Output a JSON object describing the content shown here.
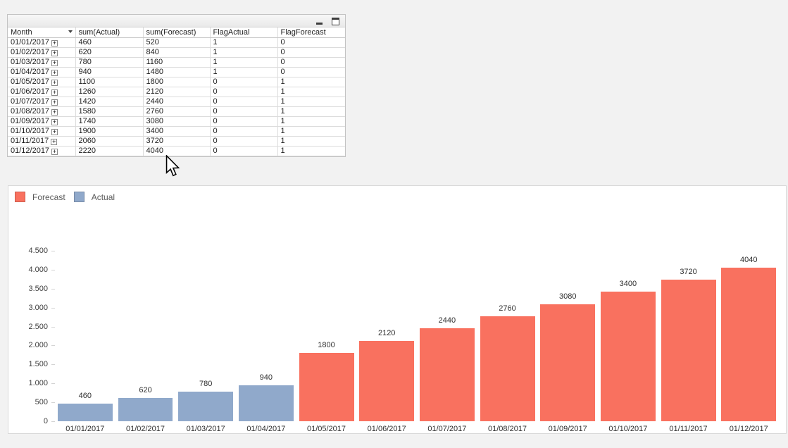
{
  "table_window": {
    "controls": [
      {
        "name": "minimize-button",
        "icon": "minimize-icon"
      },
      {
        "name": "maximize-button",
        "icon": "maximize-icon"
      }
    ]
  },
  "table": {
    "columns": [
      "Month",
      "sum(Actual)",
      "sum(Forecast)",
      "FlagActual",
      "FlagForecast"
    ],
    "expand_icon": "+",
    "rows": [
      {
        "month": "01/01/2017",
        "actual": "460",
        "forecast": "520",
        "flag_actual": "1",
        "flag_forecast": "0"
      },
      {
        "month": "01/02/2017",
        "actual": "620",
        "forecast": "840",
        "flag_actual": "1",
        "flag_forecast": "0"
      },
      {
        "month": "01/03/2017",
        "actual": "780",
        "forecast": "1160",
        "flag_actual": "1",
        "flag_forecast": "0"
      },
      {
        "month": "01/04/2017",
        "actual": "940",
        "forecast": "1480",
        "flag_actual": "1",
        "flag_forecast": "0"
      },
      {
        "month": "01/05/2017",
        "actual": "1100",
        "forecast": "1800",
        "flag_actual": "0",
        "flag_forecast": "1"
      },
      {
        "month": "01/06/2017",
        "actual": "1260",
        "forecast": "2120",
        "flag_actual": "0",
        "flag_forecast": "1"
      },
      {
        "month": "01/07/2017",
        "actual": "1420",
        "forecast": "2440",
        "flag_actual": "0",
        "flag_forecast": "1"
      },
      {
        "month": "01/08/2017",
        "actual": "1580",
        "forecast": "2760",
        "flag_actual": "0",
        "flag_forecast": "1"
      },
      {
        "month": "01/09/2017",
        "actual": "1740",
        "forecast": "3080",
        "flag_actual": "0",
        "flag_forecast": "1"
      },
      {
        "month": "01/10/2017",
        "actual": "1900",
        "forecast": "3400",
        "flag_actual": "0",
        "flag_forecast": "1"
      },
      {
        "month": "01/11/2017",
        "actual": "2060",
        "forecast": "3720",
        "flag_actual": "0",
        "flag_forecast": "1"
      },
      {
        "month": "01/12/2017",
        "actual": "2220",
        "forecast": "4040",
        "flag_actual": "0",
        "flag_forecast": "1"
      }
    ]
  },
  "chart_data": {
    "type": "bar",
    "title": "",
    "xlabel": "",
    "ylabel": "",
    "categories": [
      "01/01/2017",
      "01/02/2017",
      "01/03/2017",
      "01/04/2017",
      "01/05/2017",
      "01/06/2017",
      "01/07/2017",
      "01/08/2017",
      "01/09/2017",
      "01/10/2017",
      "01/11/2017",
      "01/12/2017"
    ],
    "series": [
      {
        "name": "Forecast",
        "color": "#f9715f",
        "values": [
          null,
          null,
          null,
          null,
          1800,
          2120,
          2440,
          2760,
          3080,
          3400,
          3720,
          4040
        ]
      },
      {
        "name": "Actual",
        "color": "#90a9cb",
        "values": [
          460,
          620,
          780,
          940,
          null,
          null,
          null,
          null,
          null,
          null,
          null,
          null
        ]
      }
    ],
    "bar_labels": [
      "460",
      "620",
      "780",
      "940",
      "1800",
      "2120",
      "2440",
      "2760",
      "3080",
      "3400",
      "3720",
      "4040"
    ],
    "ylim": [
      0,
      4500
    ],
    "ytick_values": [
      0,
      500,
      1000,
      1500,
      2000,
      2500,
      3000,
      3500,
      4000,
      4500
    ],
    "ytick_labels": [
      "0",
      "500",
      "1.000",
      "1.500",
      "2.000",
      "2.500",
      "3.000",
      "3.500",
      "4.000",
      "4.500"
    ],
    "grid": false,
    "legend_position": "top-left",
    "legend": [
      {
        "label": "Forecast",
        "color": "#f9715f"
      },
      {
        "label": "Actual",
        "color": "#90a9cb"
      }
    ]
  }
}
